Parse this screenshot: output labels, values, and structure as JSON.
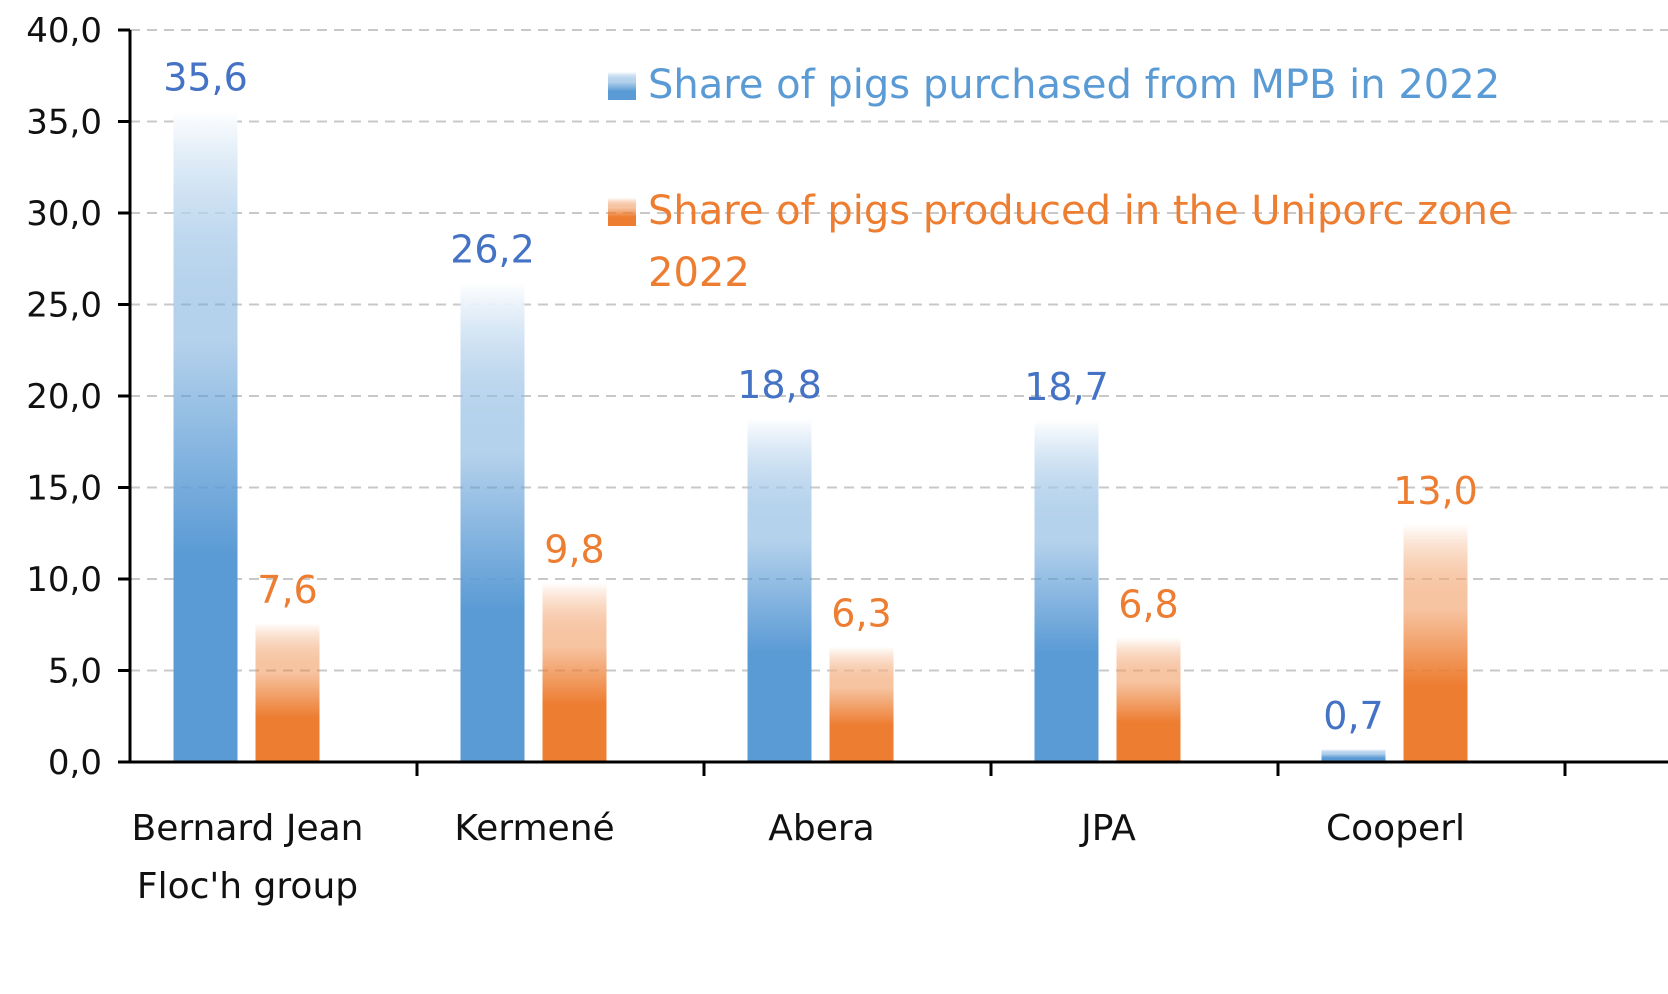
{
  "chart_data": {
    "type": "bar",
    "categories": [
      [
        "Bernard Jean",
        "Floc'h group"
      ],
      [
        "Kermené"
      ],
      [
        "Abera"
      ],
      [
        "JPA"
      ],
      [
        "Cooperl"
      ]
    ],
    "series": [
      {
        "name": [
          "Share of pigs purchased from MPB in 2022"
        ],
        "color": "#5b9bd5",
        "label_color": "#4472c4",
        "legend_color": "#5b9bd5",
        "values": [
          35.6,
          26.2,
          18.8,
          18.7,
          0.7
        ],
        "value_labels": [
          "35,6",
          "26,2",
          "18,8",
          "18,7",
          "0,7"
        ]
      },
      {
        "name": [
          "Share of pigs produced in the Uniporc zone",
          "2022"
        ],
        "color": "#ed7d31",
        "label_color": "#ed7d31",
        "legend_color": "#ed7d31",
        "values": [
          7.6,
          9.8,
          6.3,
          6.8,
          13.0
        ],
        "value_labels": [
          "7,6",
          "9,8",
          "6,3",
          "6,8",
          "13,0"
        ]
      }
    ],
    "y_ticks": [
      0,
      5,
      10,
      15,
      20,
      25,
      30,
      35,
      40
    ],
    "y_tick_labels": [
      "0,0",
      "5,0",
      "10,0",
      "15,0",
      "20,0",
      "25,0",
      "30,0",
      "35,0",
      "40,0"
    ],
    "ylim": [
      0,
      40
    ],
    "grid": true,
    "legend_position": "top-right"
  }
}
